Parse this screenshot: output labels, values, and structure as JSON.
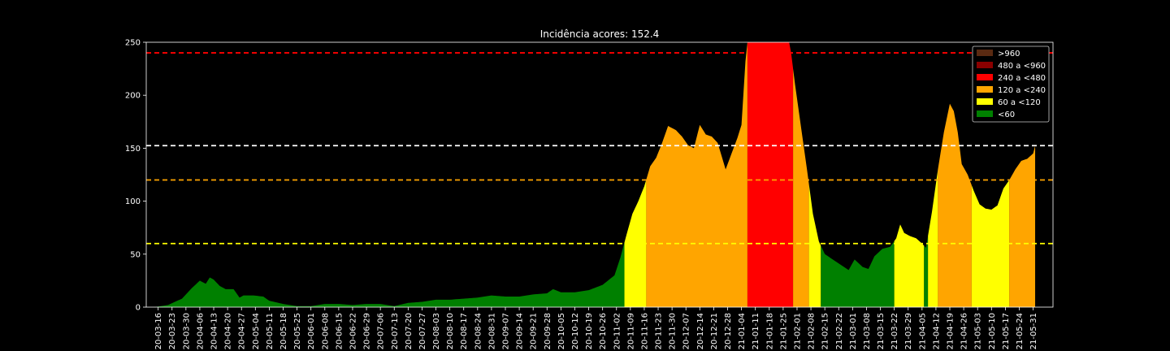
{
  "chart_data": {
    "type": "area",
    "title": "Incidência acores: 152.4",
    "xlabel": "",
    "ylabel": "",
    "ylim": [
      0,
      250
    ],
    "yticks": [
      0,
      50,
      100,
      150,
      200,
      250
    ],
    "x_start": "2020-03-10",
    "x_end": "2021-06-10",
    "x_ticks": [
      "20-03-16",
      "20-03-23",
      "20-03-30",
      "20-04-06",
      "20-04-13",
      "20-04-20",
      "20-04-27",
      "20-05-04",
      "20-05-11",
      "20-05-18",
      "20-05-25",
      "20-06-01",
      "20-06-08",
      "20-06-15",
      "20-06-22",
      "20-06-29",
      "20-07-06",
      "20-07-13",
      "20-07-20",
      "20-07-27",
      "20-08-03",
      "20-08-10",
      "20-08-17",
      "20-08-24",
      "20-08-31",
      "20-09-07",
      "20-09-14",
      "20-09-21",
      "20-09-28",
      "20-10-05",
      "20-10-12",
      "20-10-19",
      "20-10-26",
      "20-11-02",
      "20-11-09",
      "20-11-16",
      "20-11-23",
      "20-11-30",
      "20-12-07",
      "20-12-14",
      "20-12-21",
      "20-12-28",
      "21-01-04",
      "21-01-11",
      "21-01-18",
      "21-01-25",
      "21-02-01",
      "21-02-08",
      "21-02-15",
      "21-02-22",
      "21-03-01",
      "21-03-08",
      "21-03-15",
      "21-03-22",
      "21-03-29",
      "21-04-05",
      "21-04-12",
      "21-04-19",
      "21-04-26",
      "21-05-03",
      "21-05-10",
      "21-05-17",
      "21-05-24",
      "21-05-31"
    ],
    "series": [
      {
        "x": [
          "2020-03-14",
          "2020-03-21",
          "2020-03-28",
          "2020-04-02",
          "2020-04-06",
          "2020-04-09",
          "2020-04-11",
          "2020-04-13",
          "2020-04-16",
          "2020-04-19",
          "2020-04-23",
          "2020-04-26",
          "2020-04-28",
          "2020-05-03",
          "2020-05-08",
          "2020-05-11",
          "2020-05-18",
          "2020-05-25",
          "2020-06-01",
          "2020-06-08",
          "2020-06-15",
          "2020-06-22",
          "2020-06-29",
          "2020-07-06",
          "2020-07-13",
          "2020-07-20",
          "2020-07-27",
          "2020-08-03",
          "2020-08-10",
          "2020-08-17",
          "2020-08-24",
          "2020-08-31",
          "2020-09-07",
          "2020-09-14",
          "2020-09-21",
          "2020-09-28",
          "2020-10-01",
          "2020-10-05",
          "2020-10-12",
          "2020-10-19",
          "2020-10-26",
          "2020-11-01",
          "2020-11-04",
          "2020-11-07",
          "2020-11-10",
          "2020-11-13",
          "2020-11-16",
          "2020-11-19",
          "2020-11-22",
          "2020-11-25",
          "2020-11-28",
          "2020-12-02",
          "2020-12-05",
          "2020-12-08",
          "2020-12-11",
          "2020-12-14",
          "2020-12-17",
          "2020-12-20",
          "2020-12-23",
          "2020-12-27",
          "2020-12-30",
          "2021-01-02",
          "2021-01-04",
          "2021-01-07",
          "2021-01-12",
          "2021-01-20",
          "2021-01-28",
          "2021-01-31",
          "2021-02-03",
          "2021-02-06",
          "2021-02-09",
          "2021-02-12",
          "2021-02-15",
          "2021-02-19",
          "2021-02-23",
          "2021-02-27",
          "2021-03-02",
          "2021-03-06",
          "2021-03-09",
          "2021-03-12",
          "2021-03-16",
          "2021-03-20",
          "2021-03-23",
          "2021-03-25",
          "2021-03-27",
          "2021-03-30",
          "2021-04-02",
          "2021-04-05",
          "2021-04-07",
          "2021-04-10",
          "2021-04-13",
          "2021-04-16",
          "2021-04-19",
          "2021-04-21",
          "2021-04-23",
          "2021-04-25",
          "2021-04-28",
          "2021-05-01",
          "2021-05-04",
          "2021-05-07",
          "2021-05-10",
          "2021-05-13",
          "2021-05-16",
          "2021-05-19",
          "2021-05-22",
          "2021-05-25",
          "2021-05-28",
          "2021-05-31",
          "2021-06-01"
        ],
        "values": [
          0,
          2,
          8,
          18,
          25,
          22,
          28,
          26,
          20,
          17,
          17,
          9,
          11,
          11,
          10,
          6,
          3,
          1,
          1,
          3,
          3,
          2,
          3,
          3,
          1,
          4,
          5,
          7,
          7,
          8,
          9,
          11,
          10,
          10,
          12,
          13,
          17,
          14,
          14,
          16,
          21,
          30,
          47,
          68,
          88,
          100,
          114,
          133,
          141,
          155,
          171,
          167,
          161,
          153,
          150,
          172,
          163,
          161,
          155,
          130,
          145,
          160,
          172,
          262,
          275,
          270,
          255,
          210,
          170,
          130,
          88,
          62,
          50,
          45,
          40,
          35,
          45,
          38,
          36,
          48,
          55,
          57,
          65,
          78,
          70,
          67,
          65,
          60,
          56,
          90,
          130,
          165,
          192,
          185,
          165,
          135,
          125,
          110,
          97,
          93,
          92,
          96,
          112,
          120,
          130,
          138,
          140,
          145,
          152
        ]
      }
    ],
    "thresholds": [
      {
        "value": 240,
        "color": "#ff0000"
      },
      {
        "value": 152.4,
        "color": "#ffffff"
      },
      {
        "value": 120,
        "color": "#ffa500"
      },
      {
        "value": 60,
        "color": "#ffff00"
      }
    ],
    "bands": [
      {
        "label": ">960",
        "min": 960,
        "max": 100000,
        "color": "#5a2a12"
      },
      {
        "label": "480 a <960",
        "min": 480,
        "max": 960,
        "color": "#8b0000"
      },
      {
        "label": "240 a <480",
        "min": 240,
        "max": 480,
        "color": "#ff0000"
      },
      {
        "label": "120 a <240",
        "min": 120,
        "max": 240,
        "color": "#ffa500"
      },
      {
        "label": "60 a <120",
        "min": 60,
        "max": 120,
        "color": "#ffff00"
      },
      {
        "label": "<60",
        "min": -1,
        "max": 60,
        "color": "#008000"
      }
    ],
    "legend_position": "top-right",
    "grid": false
  }
}
